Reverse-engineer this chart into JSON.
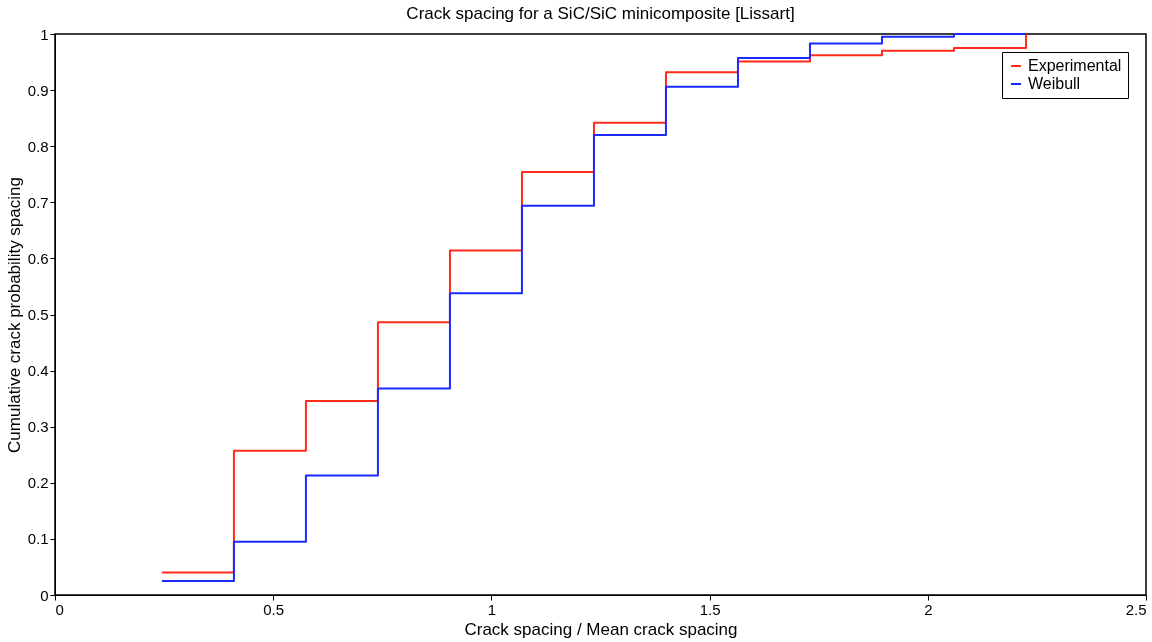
{
  "chart_data": {
    "type": "step",
    "title": "Crack spacing for a SiC/SiC minicomposite [Lissart]",
    "xlabel": "Crack spacing / Mean crack spacing",
    "ylabel": "Cumulative crack probability spacing",
    "series": [
      {
        "name": "Experimental",
        "color": "#ff2a1a",
        "x": [
          0.245,
          0.41,
          0.575,
          0.74,
          0.905,
          1.07,
          1.235,
          1.4,
          1.565,
          1.73,
          1.895,
          2.06,
          2.225
        ],
        "values": [
          0.04,
          0.257,
          0.346,
          0.486,
          0.614,
          0.754,
          0.842,
          0.932,
          0.951,
          0.962,
          0.97,
          0.975,
          1.0
        ]
      },
      {
        "name": "Weibull",
        "color": "#1a2aff",
        "x": [
          0.245,
          0.41,
          0.575,
          0.74,
          0.905,
          1.07,
          1.235,
          1.4,
          1.565,
          1.73,
          1.895,
          2.06,
          2.225
        ],
        "values": [
          0.025,
          0.095,
          0.213,
          0.368,
          0.538,
          0.694,
          0.82,
          0.906,
          0.957,
          0.983,
          0.995,
          1.0,
          1.0
        ]
      }
    ],
    "xlim": [
      0,
      2.5
    ],
    "xticks": [
      0,
      0.5,
      1,
      1.5,
      2,
      2.5
    ],
    "ylim": [
      0,
      1
    ],
    "yticks": [
      0,
      0.1,
      0.2,
      0.3,
      0.4,
      0.5,
      0.6,
      0.7,
      0.8,
      0.9,
      1
    ],
    "grid": false,
    "legend": "top right",
    "line_style": "solid"
  }
}
